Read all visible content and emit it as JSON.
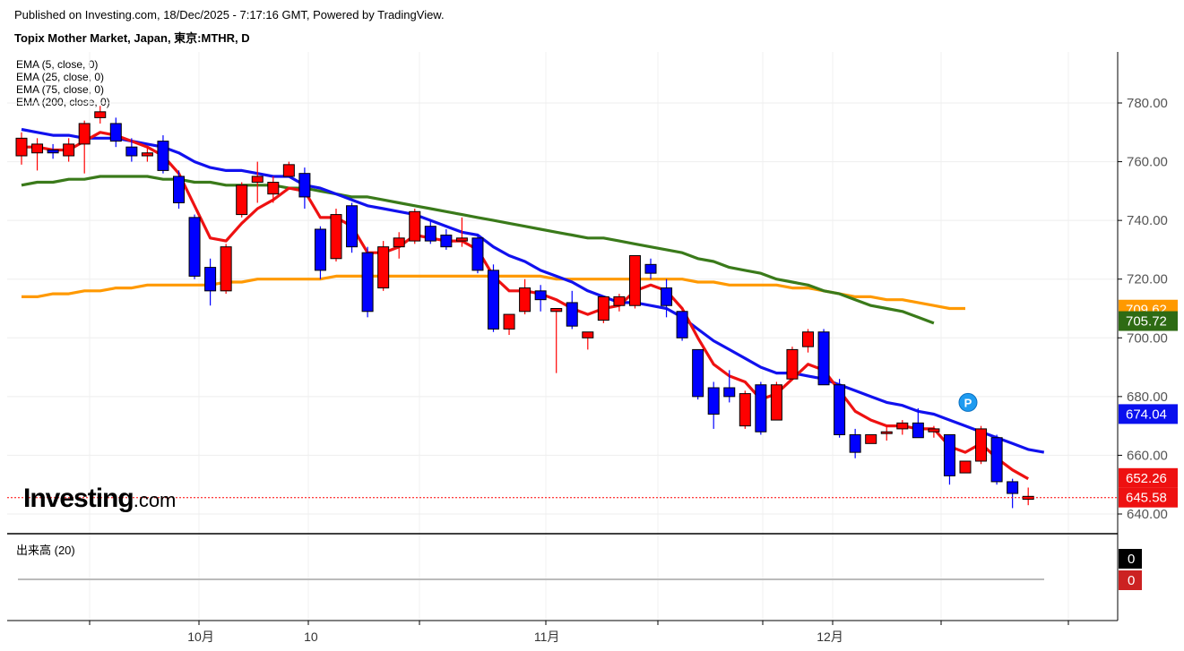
{
  "header": {
    "published": "Published on Investing.com, 18/Dec/2025 - 7:17:16 GMT, Powered by TradingView.",
    "title": "Topix Mother Market, Japan, 東京:MTHR, D"
  },
  "legend": {
    "items": [
      "EMA (5, close, 0)",
      "EMA (25, close, 0)",
      "EMA (75, close, 0)",
      "EMA (200, close, 0)"
    ]
  },
  "logo": {
    "main": "Investing",
    "suffix": ".com"
  },
  "volume_panel": {
    "title": "出来高 (20)",
    "tag_upper": "0",
    "tag_lower": "0"
  },
  "colors": {
    "up": "#ff0000",
    "down": "#0000ff",
    "ema5": "#ee1111",
    "ema25": "#1111ee",
    "ema75": "#3a7a1a",
    "ema200": "#ff9900",
    "last": "#ff0000"
  },
  "chart_data": {
    "type": "candlestick",
    "ylim": [
      636,
      798
    ],
    "y_ticks": [
      "640.00",
      "660.00",
      "680.00",
      "700.00",
      "720.00",
      "740.00",
      "760.00",
      "780.00"
    ],
    "x_ticks": [
      {
        "label": "10月",
        "index": 11
      },
      {
        "label": "10",
        "index": 18
      },
      {
        "label": "11月",
        "index": 33
      },
      {
        "label": "12月",
        "index": 51
      }
    ],
    "candles": [
      {
        "o": 762,
        "h": 770,
        "l": 759,
        "c": 768
      },
      {
        "o": 763,
        "h": 768,
        "l": 757,
        "c": 766
      },
      {
        "o": 764,
        "h": 766,
        "l": 761,
        "c": 763
      },
      {
        "o": 762,
        "h": 768,
        "l": 760,
        "c": 766
      },
      {
        "o": 766,
        "h": 774,
        "l": 756,
        "c": 773
      },
      {
        "o": 775,
        "h": 779,
        "l": 773,
        "c": 777
      },
      {
        "o": 773,
        "h": 775,
        "l": 765,
        "c": 767
      },
      {
        "o": 765,
        "h": 768,
        "l": 760,
        "c": 762
      },
      {
        "o": 762,
        "h": 765,
        "l": 760,
        "c": 763
      },
      {
        "o": 767,
        "h": 769,
        "l": 756,
        "c": 757
      },
      {
        "o": 755,
        "h": 757,
        "l": 744,
        "c": 746
      },
      {
        "o": 741,
        "h": 742,
        "l": 720,
        "c": 721
      },
      {
        "o": 724,
        "h": 727,
        "l": 711,
        "c": 716
      },
      {
        "o": 716,
        "h": 732,
        "l": 715,
        "c": 731
      },
      {
        "o": 742,
        "h": 753,
        "l": 741,
        "c": 752
      },
      {
        "o": 753,
        "h": 760,
        "l": 746,
        "c": 755
      },
      {
        "o": 749,
        "h": 755,
        "l": 746,
        "c": 753
      },
      {
        "o": 755,
        "h": 760,
        "l": 755,
        "c": 759
      },
      {
        "o": 756,
        "h": 758,
        "l": 744,
        "c": 748
      },
      {
        "o": 737,
        "h": 738,
        "l": 720,
        "c": 723
      },
      {
        "o": 727,
        "h": 744,
        "l": 726,
        "c": 742
      },
      {
        "o": 745,
        "h": 746,
        "l": 729,
        "c": 731
      },
      {
        "o": 729,
        "h": 731,
        "l": 707,
        "c": 709
      },
      {
        "o": 717,
        "h": 733,
        "l": 716,
        "c": 731
      },
      {
        "o": 731,
        "h": 736,
        "l": 727,
        "c": 734
      },
      {
        "o": 733,
        "h": 744,
        "l": 732,
        "c": 743
      },
      {
        "o": 738,
        "h": 740,
        "l": 732,
        "c": 733
      },
      {
        "o": 735,
        "h": 737,
        "l": 730,
        "c": 731
      },
      {
        "o": 733,
        "h": 741,
        "l": 731,
        "c": 734
      },
      {
        "o": 734,
        "h": 735,
        "l": 722,
        "c": 723
      },
      {
        "o": 723,
        "h": 725,
        "l": 702,
        "c": 703
      },
      {
        "o": 703,
        "h": 708,
        "l": 701,
        "c": 708
      },
      {
        "o": 709,
        "h": 720,
        "l": 708,
        "c": 717
      },
      {
        "o": 716,
        "h": 718,
        "l": 709,
        "c": 713
      },
      {
        "o": 709,
        "h": 710,
        "l": 688,
        "c": 710
      },
      {
        "o": 712,
        "h": 716,
        "l": 703,
        "c": 704
      },
      {
        "o": 700,
        "h": 702,
        "l": 696,
        "c": 702
      },
      {
        "o": 706,
        "h": 714,
        "l": 705,
        "c": 714
      },
      {
        "o": 711,
        "h": 715,
        "l": 709,
        "c": 714
      },
      {
        "o": 711,
        "h": 728,
        "l": 710,
        "c": 728
      },
      {
        "o": 725,
        "h": 727,
        "l": 720,
        "c": 722
      },
      {
        "o": 717,
        "h": 720,
        "l": 707,
        "c": 711
      },
      {
        "o": 709,
        "h": 709,
        "l": 699,
        "c": 700
      },
      {
        "o": 696,
        "h": 696,
        "l": 679,
        "c": 680
      },
      {
        "o": 683,
        "h": 685,
        "l": 669,
        "c": 674
      },
      {
        "o": 683,
        "h": 689,
        "l": 678,
        "c": 680
      },
      {
        "o": 670,
        "h": 682,
        "l": 669,
        "c": 681
      },
      {
        "o": 684,
        "h": 685,
        "l": 667,
        "c": 668
      },
      {
        "o": 672,
        "h": 685,
        "l": 672,
        "c": 684
      },
      {
        "o": 686,
        "h": 697,
        "l": 686,
        "c": 696
      },
      {
        "o": 697,
        "h": 703,
        "l": 695,
        "c": 702
      },
      {
        "o": 702,
        "h": 703,
        "l": 684,
        "c": 684
      },
      {
        "o": 684,
        "h": 686,
        "l": 666,
        "c": 667
      },
      {
        "o": 667,
        "h": 669,
        "l": 659,
        "c": 661
      },
      {
        "o": 664,
        "h": 667,
        "l": 664,
        "c": 667
      },
      {
        "o": 668,
        "h": 670,
        "l": 665,
        "c": 668
      },
      {
        "o": 669,
        "h": 672,
        "l": 667,
        "c": 671
      },
      {
        "o": 671,
        "h": 676,
        "l": 666,
        "c": 666
      },
      {
        "o": 668,
        "h": 670,
        "l": 666,
        "c": 669
      },
      {
        "o": 667,
        "h": 667,
        "l": 650,
        "c": 653
      },
      {
        "o": 654,
        "h": 658,
        "l": 654,
        "c": 658
      },
      {
        "o": 658,
        "h": 670,
        "l": 657,
        "c": 669
      },
      {
        "o": 666,
        "h": 667,
        "l": 650,
        "c": 651
      },
      {
        "o": 651,
        "h": 652,
        "l": 642,
        "c": 647
      },
      {
        "o": 645,
        "h": 649,
        "l": 643,
        "c": 646
      }
    ],
    "ema5": [
      765,
      765,
      764,
      764,
      767,
      770,
      769,
      767,
      765,
      762,
      756,
      745,
      734,
      733,
      739,
      744,
      747,
      751,
      750,
      741,
      741,
      738,
      729,
      729,
      731,
      735,
      734,
      733,
      733,
      730,
      721,
      716,
      716,
      715,
      713,
      710,
      708,
      710,
      711,
      716,
      718,
      716,
      710,
      700,
      691,
      687,
      685,
      679,
      681,
      686,
      691,
      689,
      682,
      675,
      672,
      670,
      670,
      669,
      669,
      663,
      661,
      664,
      659,
      655,
      652
    ],
    "ema25": [
      771,
      770,
      769,
      769,
      768,
      768,
      768,
      767,
      766,
      765,
      763,
      760,
      758,
      757,
      757,
      756,
      755,
      755,
      752,
      751,
      749,
      747,
      745,
      744,
      743,
      742,
      740,
      738,
      736,
      735,
      731,
      728,
      726,
      723,
      721,
      719,
      716,
      714,
      712,
      712,
      711,
      710,
      707,
      703,
      699,
      696,
      693,
      690,
      688,
      688,
      687,
      686,
      684,
      682,
      680,
      678,
      677,
      675,
      674,
      672,
      670,
      668,
      666,
      664,
      662,
      661
    ],
    "ema75": [
      752,
      753,
      753,
      754,
      754,
      755,
      755,
      755,
      755,
      754,
      754,
      753,
      753,
      752,
      752,
      752,
      752,
      751,
      751,
      750,
      749,
      748,
      748,
      747,
      746,
      745,
      744,
      743,
      742,
      741,
      740,
      739,
      738,
      737,
      736,
      735,
      734,
      734,
      733,
      732,
      731,
      730,
      729,
      727,
      726,
      724,
      723,
      722,
      720,
      719,
      718,
      716,
      715,
      713,
      711,
      710,
      709,
      707,
      705
    ],
    "ema200": [
      714,
      714,
      715,
      715,
      716,
      716,
      717,
      717,
      718,
      718,
      718,
      718,
      718,
      719,
      719,
      720,
      720,
      720,
      720,
      720,
      721,
      721,
      721,
      721,
      721,
      721,
      721,
      721,
      721,
      721,
      721,
      721,
      721,
      721,
      720,
      720,
      720,
      720,
      720,
      720,
      720,
      720,
      720,
      719,
      719,
      718,
      718,
      718,
      718,
      717,
      717,
      716,
      715,
      714,
      714,
      713,
      713,
      712,
      711,
      710,
      710
    ],
    "last_price": 645.58,
    "price_tags": [
      {
        "label": "709.62",
        "value": 709.62,
        "color": "#ff9900"
      },
      {
        "label": "705.72",
        "value": 705.72,
        "color": "#2e6b14"
      },
      {
        "label": "674.04",
        "value": 674.04,
        "color": "#0a10ee"
      },
      {
        "label": "652.26",
        "value": 652.26,
        "color": "#ee1111"
      },
      {
        "label": "645.58",
        "value": 645.58,
        "color": "#ee1111"
      }
    ],
    "marker": {
      "label": "P",
      "index": 60,
      "value": 678
    }
  }
}
